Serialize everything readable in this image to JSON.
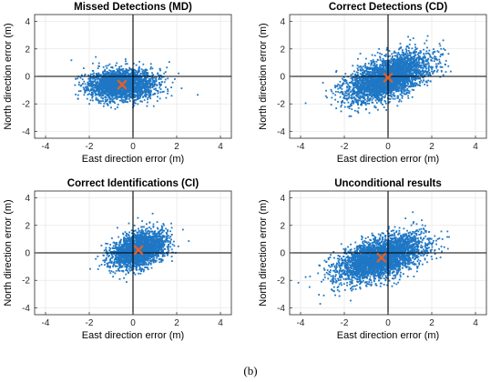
{
  "figure_label": "(b)",
  "colors": {
    "points": "#1f77c4",
    "mean_marker": "#e0602a",
    "axis": "#000000",
    "grid": "#e6e6e6"
  },
  "chart_data": [
    {
      "type": "scatter",
      "title": "Missed Detections (MD)",
      "xlabel": "East direction error (m)",
      "ylabel": "North direction error (m)",
      "xlim": [
        -4.5,
        4.5
      ],
      "ylim": [
        -4.5,
        4.5
      ],
      "xticks": [
        "-4",
        "-2",
        "0",
        "2",
        "4"
      ],
      "yticks": [
        "4",
        "2",
        "0",
        "-2",
        "-4"
      ],
      "grid": true,
      "cloud": {
        "center": [
          -0.5,
          -0.6
        ],
        "sx": 0.75,
        "sy": 0.55,
        "rho": 0.05,
        "n": 2600,
        "seed": 11
      },
      "mean_marker": [
        -0.5,
        -0.6
      ]
    },
    {
      "type": "scatter",
      "title": "Correct Detections (CD)",
      "xlabel": "East direction error (m)",
      "ylabel": "North direction error (m)",
      "xlim": [
        -4.5,
        4.5
      ],
      "ylim": [
        -4.5,
        4.5
      ],
      "xticks": [
        "-4",
        "-2",
        "0",
        "2",
        "4"
      ],
      "yticks": [
        "4",
        "2",
        "0",
        "-2",
        "-4"
      ],
      "grid": true,
      "cloud": {
        "center": [
          0.0,
          -0.1
        ],
        "sx": 0.95,
        "sy": 0.85,
        "rho": 0.55,
        "n": 3200,
        "seed": 23
      },
      "mean_marker": [
        0.0,
        -0.1
      ]
    },
    {
      "type": "scatter",
      "title": "Correct Identifications (CI)",
      "xlabel": "East direction error (m)",
      "ylabel": "North direction error (m)",
      "xlim": [
        -4.5,
        4.5
      ],
      "ylim": [
        -4.5,
        4.5
      ],
      "xticks": [
        "-4",
        "-2",
        "0",
        "2",
        "4"
      ],
      "yticks": [
        "4",
        "2",
        "0",
        "-2",
        "-4"
      ],
      "grid": true,
      "cloud": {
        "center": [
          0.25,
          0.2
        ],
        "sx": 0.6,
        "sy": 0.65,
        "rho": 0.35,
        "n": 2400,
        "seed": 37
      },
      "mean_marker": [
        0.25,
        0.2
      ]
    },
    {
      "type": "scatter",
      "title": "Unconditional results",
      "xlabel": "East direction error (m)",
      "ylabel": "North direction error (m)",
      "xlim": [
        -4.5,
        4.5
      ],
      "ylim": [
        -4.5,
        4.5
      ],
      "xticks": [
        "-4",
        "-2",
        "0",
        "2",
        "4"
      ],
      "yticks": [
        "4",
        "2",
        "0",
        "-2",
        "-4"
      ],
      "grid": true,
      "cloud": {
        "center": [
          -0.3,
          -0.35
        ],
        "sx": 1.0,
        "sy": 0.85,
        "rho": 0.55,
        "n": 3400,
        "seed": 53
      },
      "mean_marker": [
        -0.3,
        -0.35
      ]
    }
  ]
}
